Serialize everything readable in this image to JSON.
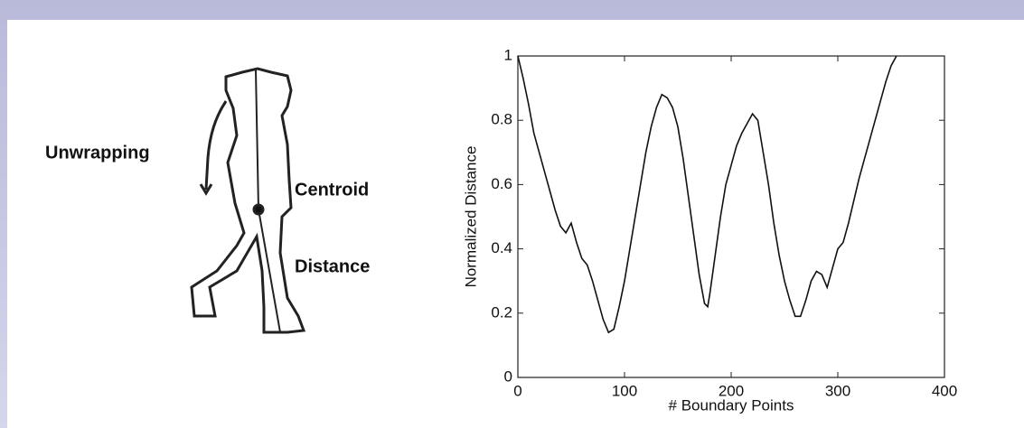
{
  "diagram": {
    "labels": [
      "Unwrapping",
      "Centroid",
      "Distance"
    ]
  },
  "chart_data": {
    "type": "line",
    "x_label": "# Boundary Points",
    "y_label": "Normalized Distance",
    "x": [
      0,
      5,
      10,
      15,
      20,
      25,
      30,
      35,
      40,
      45,
      50,
      55,
      60,
      65,
      70,
      75,
      80,
      85,
      90,
      95,
      100,
      105,
      110,
      115,
      120,
      125,
      130,
      135,
      140,
      145,
      150,
      155,
      160,
      165,
      170,
      175,
      178,
      180,
      185,
      190,
      195,
      200,
      205,
      210,
      215,
      220,
      225,
      230,
      235,
      240,
      245,
      250,
      255,
      260,
      265,
      270,
      275,
      280,
      285,
      290,
      295,
      300,
      305,
      310,
      315,
      320,
      325,
      330,
      335,
      340,
      345,
      350,
      355
    ],
    "series": [
      {
        "color": "#111111",
        "values": [
          1.0,
          0.93,
          0.85,
          0.76,
          0.7,
          0.64,
          0.58,
          0.52,
          0.47,
          0.45,
          0.48,
          0.42,
          0.37,
          0.35,
          0.3,
          0.24,
          0.18,
          0.14,
          0.15,
          0.22,
          0.3,
          0.4,
          0.5,
          0.6,
          0.7,
          0.78,
          0.84,
          0.88,
          0.87,
          0.84,
          0.78,
          0.68,
          0.56,
          0.44,
          0.32,
          0.23,
          0.22,
          0.26,
          0.38,
          0.5,
          0.6,
          0.66,
          0.72,
          0.76,
          0.79,
          0.82,
          0.8,
          0.7,
          0.6,
          0.48,
          0.38,
          0.3,
          0.24,
          0.19,
          0.19,
          0.24,
          0.3,
          0.33,
          0.32,
          0.28,
          0.34,
          0.4,
          0.42,
          0.48,
          0.55,
          0.62,
          0.68,
          0.74,
          0.8,
          0.86,
          0.92,
          0.97,
          1.0
        ]
      }
    ],
    "xlim": [
      0,
      400
    ],
    "xticks": [
      0,
      100,
      200,
      300,
      400
    ],
    "ylim": [
      0,
      1
    ],
    "yticks": [
      0,
      0.2,
      0.4,
      0.6,
      0.8,
      1
    ]
  }
}
